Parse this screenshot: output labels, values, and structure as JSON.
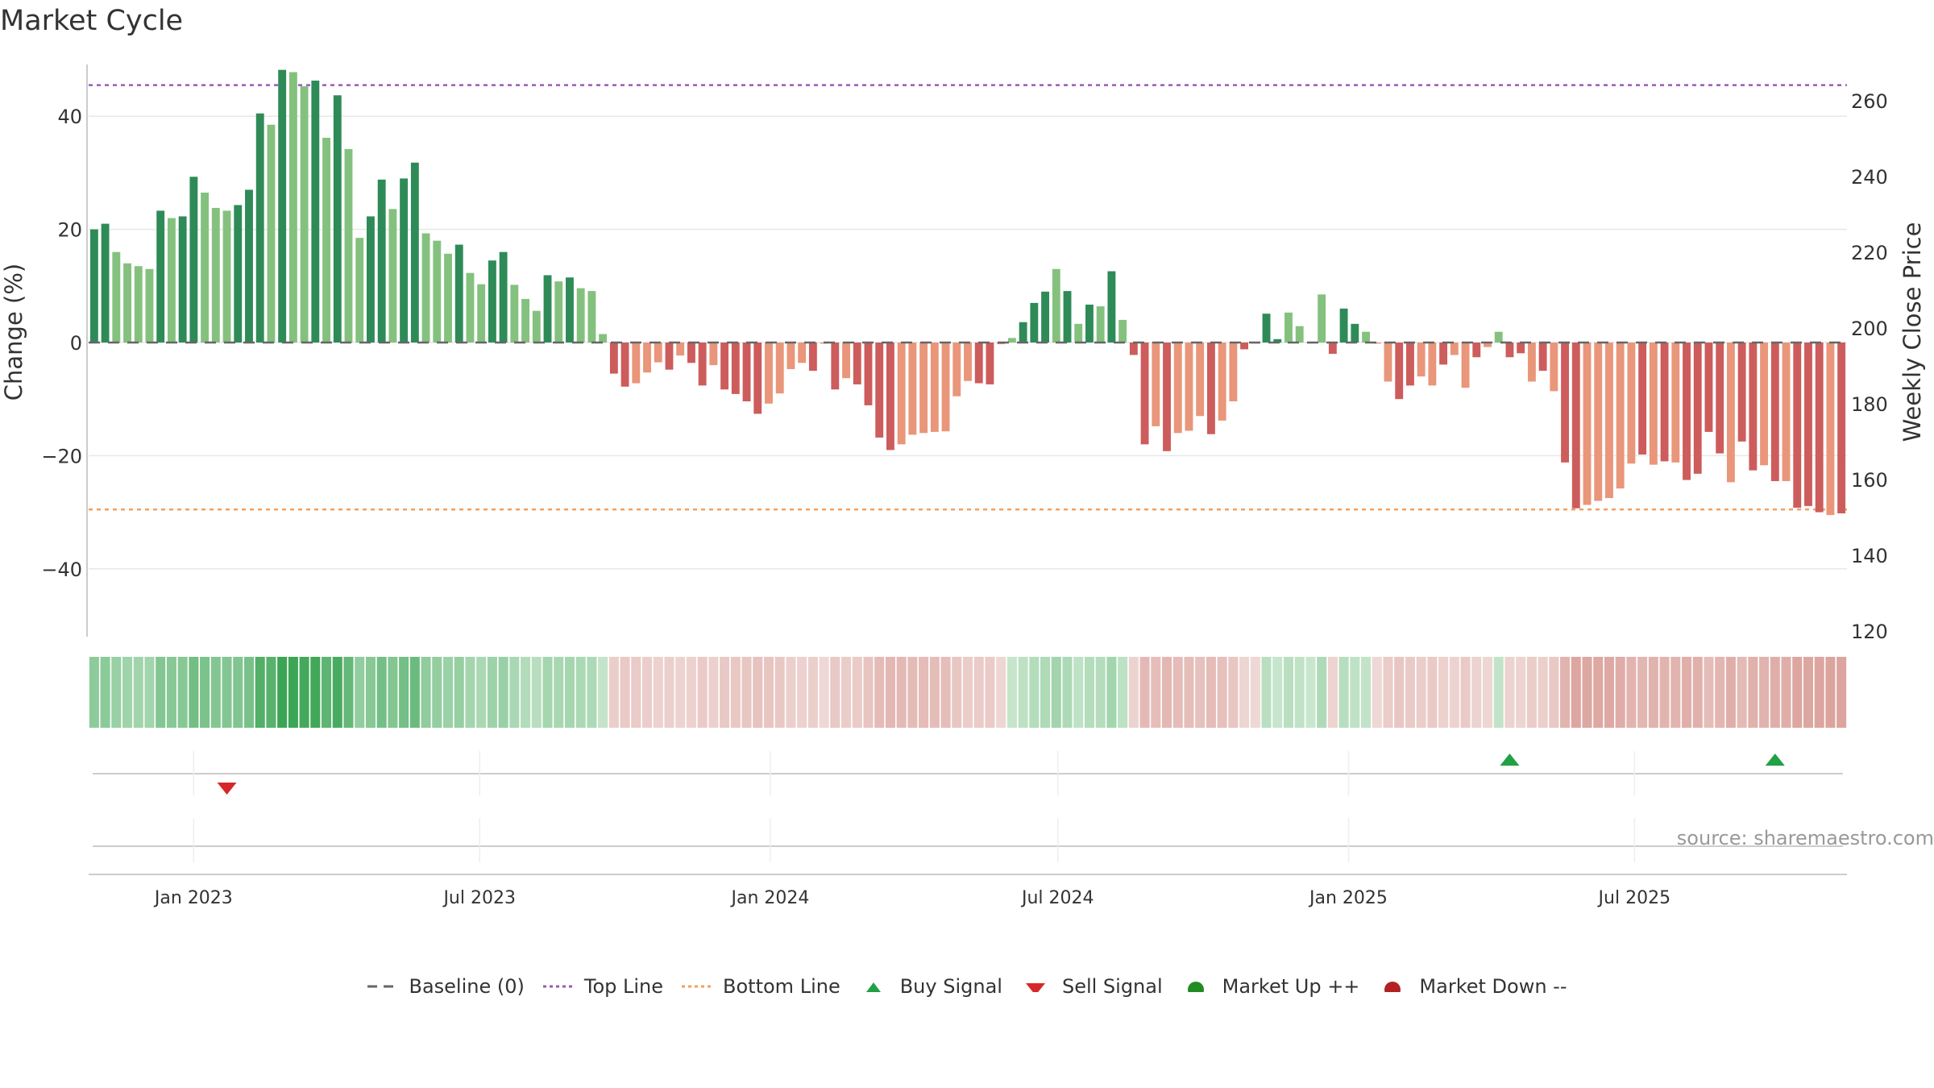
{
  "chart_data": {
    "type": "bar",
    "title": "Market Cycle",
    "ylabel_left": "Change (%)",
    "ylabel_right": "Weekly Close Price",
    "y_left_range": [
      -52,
      52
    ],
    "y_left_ticks": [
      "−40",
      "−20",
      "0",
      "20",
      "40"
    ],
    "y_left_tick_values": [
      -40,
      -20,
      0,
      20,
      40
    ],
    "y_right_range": [
      120,
      270
    ],
    "y_right_ticks": [
      "120",
      "140",
      "160",
      "180",
      "200",
      "220",
      "240",
      "260"
    ],
    "y_right_tick_values": [
      120,
      140,
      160,
      180,
      200,
      220,
      240,
      260
    ],
    "x_ticks": [
      "Jan 2023",
      "Jul 2023",
      "Jan 2024",
      "Jul 2024",
      "Jan 2025",
      "Jul 2025"
    ],
    "x_tick_dates": [
      "2023-01-01",
      "2023-07-01",
      "2024-01-01",
      "2024-07-01",
      "2025-01-01",
      "2025-07-01"
    ],
    "first_week": "2022-10-30",
    "top_line": 45.5,
    "bottom_line": -29.5,
    "baseline": 0,
    "grid": true,
    "colors": {
      "up_strong": "#2e8b57",
      "up_light": "#85c17e",
      "down_strong": "#cd5c5c",
      "down_light": "#e9967a",
      "top_line": "#9b59b6",
      "bottom_line": "#f0a060",
      "baseline": "#666666",
      "buy": "#22a045",
      "sell": "#d62828",
      "market_up": "#228b22",
      "market_down": "#b22222"
    },
    "series": [
      {
        "values": [
          20,
          21,
          16,
          14,
          13.5,
          13,
          23.3,
          22,
          22.3,
          29.3,
          26.5,
          23.8,
          23.3,
          24.3,
          27,
          40.5,
          38.5,
          48.2,
          47.8,
          45.3,
          46.3,
          36.2,
          43.7,
          34.2,
          18.5,
          22.3,
          28.8,
          23.6,
          29,
          31.8,
          19.3,
          18,
          15.7,
          17.3,
          12.3,
          10.3,
          14.5,
          16,
          10.2,
          7.7,
          5.6,
          11.9,
          10.8,
          11.5,
          9.6,
          9.1,
          1.5,
          -5.5,
          -7.8,
          -7.2,
          -5.3,
          -3.5,
          -4.8,
          -2.3,
          -3.6,
          -7.6,
          -4,
          -8.3,
          -9.1,
          -10.4,
          -12.6,
          -10.8,
          -9,
          -4.7,
          -3.6,
          -5,
          -0.2,
          -8.3,
          -6.3,
          -7.4,
          -11.1,
          -16.8,
          -19,
          -18,
          -16.3,
          -16,
          -15.8,
          -15.7,
          -9.5,
          -6.8,
          -7.2,
          -7.4,
          -0.3,
          0.8,
          3.6,
          7,
          9,
          13,
          9.1,
          3.3,
          6.7,
          6.4,
          12.6,
          4,
          -2.2,
          -18,
          -14.8,
          -19.2,
          -16,
          -15.6,
          -13,
          -16.2,
          -13.8,
          -10.4,
          -1.2,
          -0.1,
          5.1,
          0.6,
          5.3,
          2.9,
          0,
          8.5,
          -2,
          6,
          3.3,
          1.9,
          -0.2,
          -6.9,
          -10,
          -7.6,
          -6,
          -7.6,
          -3.9,
          -2.2,
          -8,
          -2.6,
          -0.8,
          1.9,
          -2.6,
          -1.9,
          -6.9,
          -5,
          -8.6,
          -21.2,
          -29.3,
          -28.7,
          -28,
          -27.5,
          -25.8,
          -21.4,
          -19.8,
          -21.6,
          -21,
          -21.2,
          -24.3,
          -23.2,
          -15.8,
          -19.6,
          -24.7,
          -17.5,
          -22.6,
          -21.7,
          -24.5,
          -24.5,
          -29.2,
          -28.9,
          -30,
          -30.5,
          -30.2
        ],
        "strong_flags": [
          1,
          1,
          0,
          0,
          0,
          0,
          1,
          0,
          1,
          1,
          0,
          0,
          0,
          1,
          1,
          1,
          0,
          1,
          0,
          0,
          1,
          0,
          1,
          0,
          0,
          1,
          1,
          0,
          1,
          1,
          0,
          0,
          0,
          1,
          0,
          0,
          1,
          1,
          0,
          0,
          0,
          1,
          0,
          1,
          0,
          0,
          0,
          1,
          1,
          0,
          0,
          0,
          1,
          0,
          1,
          1,
          0,
          1,
          1,
          1,
          1,
          0,
          0,
          0,
          0,
          1,
          0,
          1,
          0,
          1,
          1,
          1,
          1,
          0,
          0,
          0,
          0,
          0,
          0,
          0,
          1,
          1,
          0,
          0,
          1,
          1,
          1,
          0,
          1,
          0,
          1,
          0,
          1,
          0,
          1,
          1,
          0,
          1,
          0,
          0,
          0,
          1,
          0,
          0,
          1,
          1,
          1,
          1,
          0,
          0,
          0,
          0,
          1,
          1,
          1,
          0,
          0,
          0,
          1,
          1,
          0,
          0,
          1,
          0,
          0,
          1,
          0,
          0,
          1,
          1,
          0,
          1,
          0,
          1,
          1,
          0,
          0,
          0,
          0,
          0,
          1,
          0,
          1,
          0,
          1,
          1,
          1,
          1,
          0,
          1,
          1,
          0,
          1,
          0,
          1,
          1,
          1,
          0,
          1,
          1,
          0
        ]
      }
    ],
    "buy_signals": [
      "2025-04-13",
      "2025-09-28"
    ],
    "sell_signals": [
      "2023-01-22"
    ],
    "legend": [
      "Baseline (0)",
      "Top Line",
      "Bottom Line",
      "Buy Signal",
      "Sell Signal",
      "Market Up ++",
      "Market Down --"
    ]
  },
  "source_text": "source: sharemaestro.com"
}
